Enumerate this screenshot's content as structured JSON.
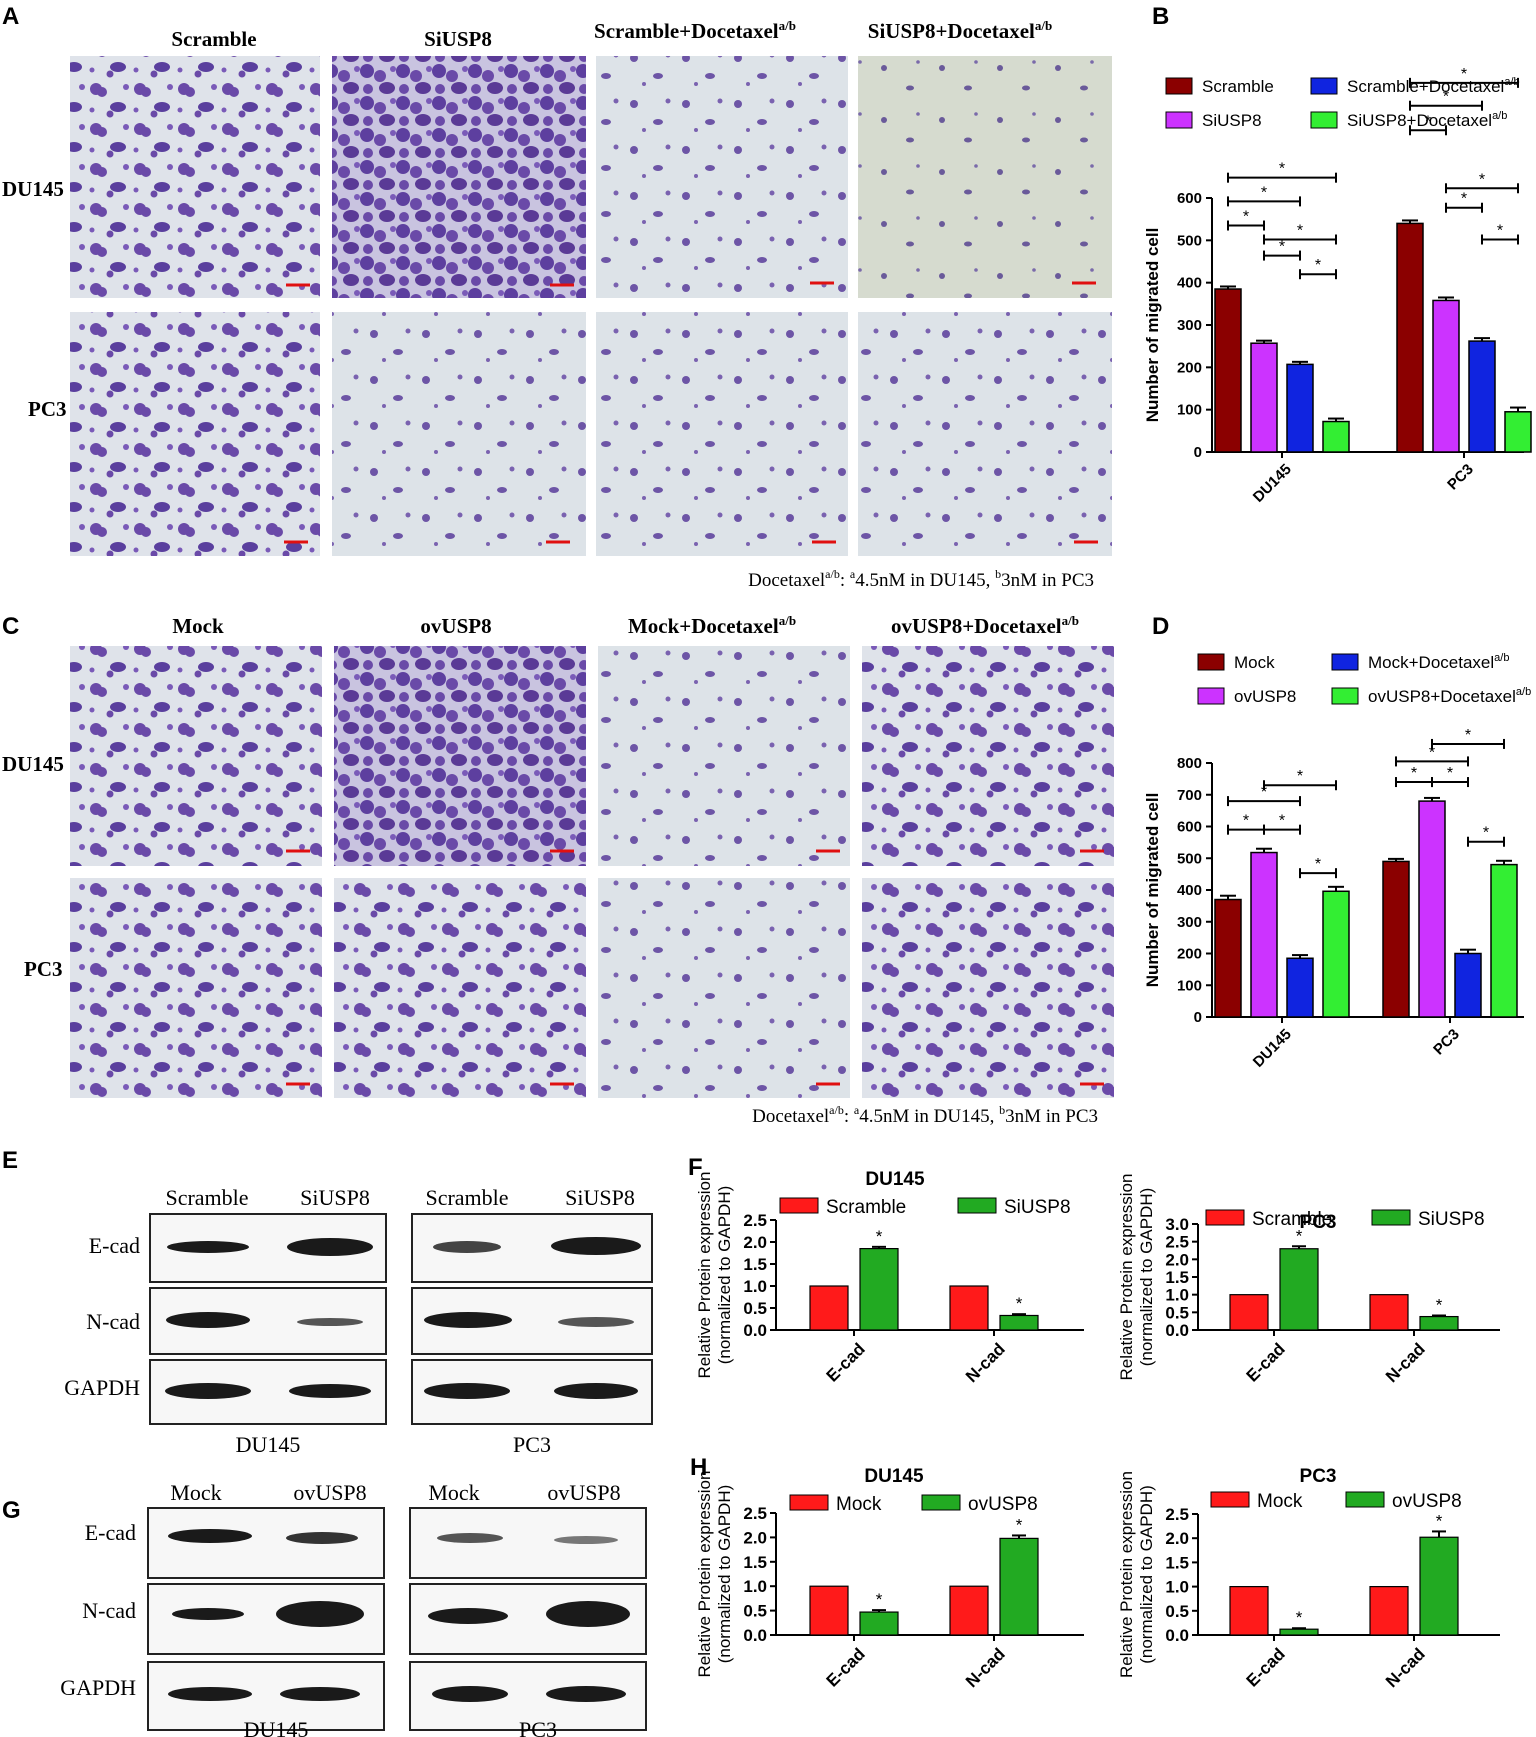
{
  "panel_labels": [
    "A",
    "B",
    "C",
    "D",
    "E",
    "F",
    "G",
    "H"
  ],
  "panelA": {
    "columns": [
      "Scramble",
      "SiUSP8",
      "Scramble+Docetaxel",
      "SiUSP8+Docetaxel"
    ],
    "superscript": "a/b",
    "rows": [
      "DU145",
      "PC3"
    ],
    "note_prefix": "Docetaxel",
    "note_sup": "a/b",
    "note_rest": ": ",
    "note_a": "a",
    "note_a_text": "4.5nM in DU145, ",
    "note_b": "b",
    "note_b_text": "3nM in PC3"
  },
  "panelC": {
    "columns": [
      "Mock",
      "ovUSP8",
      "Mock+Docetaxel",
      "ovUSP8+Docetaxel"
    ],
    "superscript": "a/b",
    "rows": [
      "DU145",
      "PC3"
    ],
    "note_prefix": "Docetaxel",
    "note_sup": "a/b",
    "note_rest": ": ",
    "note_a": "a",
    "note_a_text": "4.5nM in DU145, ",
    "note_b": "b",
    "note_b_text": "3nM in PC3"
  },
  "panelE": {
    "lanes_left": [
      "Scramble",
      "SiUSP8"
    ],
    "lanes_right": [
      "Scramble",
      "SiUSP8"
    ],
    "rows": [
      "E-cad",
      "N-cad",
      "GAPDH"
    ],
    "cells": [
      "DU145",
      "PC3"
    ]
  },
  "panelG": {
    "lanes_left": [
      "Mock",
      "ovUSP8"
    ],
    "lanes_right": [
      "Mock",
      "ovUSP8"
    ],
    "rows": [
      "E-cad",
      "N-cad",
      "GAPDH"
    ],
    "cells": [
      "DU145",
      "PC3"
    ]
  },
  "colors": {
    "scramble": "#8b0000",
    "siusp8": "#cc33ff",
    "docetaxel": "#1024e0",
    "combo": "#33ee33",
    "red": "#ff1a1a",
    "green": "#22aa22",
    "stain": "#6a4aa8",
    "field": "#dfe3ea"
  },
  "chart_data": [
    {
      "id": "B",
      "type": "bar",
      "categories": [
        "DU145",
        "PC3"
      ],
      "series": [
        {
          "name": "Scramble",
          "values": [
            385,
            540
          ],
          "errors": [
            6,
            7
          ]
        },
        {
          "name": "SiUSP8",
          "values": [
            257,
            358
          ],
          "errors": [
            6,
            7
          ]
        },
        {
          "name": "Scramble+Docetaxel",
          "values": [
            207,
            262
          ],
          "errors": [
            6,
            7
          ]
        },
        {
          "name": "SiUSP8+Docetaxel",
          "values": [
            72,
            95
          ],
          "errors": [
            7,
            10
          ]
        }
      ],
      "legend_sup": "a/b",
      "ylabel": "Number of migrated cell",
      "ylim": [
        0,
        600
      ],
      "yticks": [
        0,
        100,
        200,
        300,
        400,
        500,
        600
      ],
      "sig": "*"
    },
    {
      "id": "D",
      "type": "bar",
      "categories": [
        "DU145",
        "PC3"
      ],
      "series": [
        {
          "name": "Mock",
          "values": [
            370,
            490
          ],
          "errors": [
            12,
            8
          ]
        },
        {
          "name": "ovUSP8",
          "values": [
            518,
            680
          ],
          "errors": [
            12,
            10
          ]
        },
        {
          "name": "Mock+Docetaxel",
          "values": [
            185,
            200
          ],
          "errors": [
            10,
            12
          ]
        },
        {
          "name": "ovUSP8+Docetaxel",
          "values": [
            396,
            480
          ],
          "errors": [
            14,
            12
          ]
        }
      ],
      "legend_sup": "a/b",
      "ylabel": "Number of migrated cell",
      "ylim": [
        0,
        800
      ],
      "yticks": [
        0,
        100,
        200,
        300,
        400,
        500,
        600,
        700,
        800
      ],
      "sig": "*"
    },
    {
      "id": "F-DU145",
      "type": "bar",
      "title": "DU145",
      "categories": [
        "E-cad",
        "N-cad"
      ],
      "series": [
        {
          "name": "Scramble",
          "values": [
            1.0,
            1.0
          ],
          "errors": [
            0,
            0
          ]
        },
        {
          "name": "SiUSP8",
          "values": [
            1.85,
            0.33
          ],
          "errors": [
            0.04,
            0.03
          ]
        }
      ],
      "ylabel": "Relative Protein expression",
      "ylabel2": "(normalized to GAPDH)",
      "ylim": [
        0,
        2.5
      ],
      "yticks": [
        "0.0",
        "0.5",
        "1.0",
        "1.5",
        "2.0",
        "2.5"
      ],
      "sig": "*"
    },
    {
      "id": "F-PC3",
      "type": "bar",
      "title": "PC3",
      "categories": [
        "E-cad",
        "N-cad"
      ],
      "series": [
        {
          "name": "Scramble",
          "values": [
            1.0,
            1.0
          ],
          "errors": [
            0,
            0
          ]
        },
        {
          "name": "SiUSP8",
          "values": [
            2.3,
            0.38
          ],
          "errors": [
            0.07,
            0.03
          ]
        }
      ],
      "ylabel": "Relative Protein expression",
      "ylabel2": "(normalized to GAPDH)",
      "ylim": [
        0,
        3.0
      ],
      "yticks": [
        "0.0",
        "0.5",
        "1.0",
        "1.5",
        "2.0",
        "2.5",
        "3.0"
      ],
      "sig": "*"
    },
    {
      "id": "H-DU145",
      "type": "bar",
      "title": "DU145",
      "categories": [
        "E-cad",
        "N-cad"
      ],
      "series": [
        {
          "name": "Mock",
          "values": [
            1.0,
            1.0
          ],
          "errors": [
            0,
            0
          ]
        },
        {
          "name": "ovUSP8",
          "values": [
            0.47,
            1.98
          ],
          "errors": [
            0.04,
            0.06
          ]
        }
      ],
      "ylabel": "Relative Protein expression",
      "ylabel2": "(normalized to GAPDH)",
      "ylim": [
        0,
        2.5
      ],
      "yticks": [
        "0.0",
        "0.5",
        "1.0",
        "1.5",
        "2.0",
        "2.5"
      ],
      "sig": "*"
    },
    {
      "id": "H-PC3",
      "type": "bar",
      "title": "PC3",
      "categories": [
        "E-cad",
        "N-cad"
      ],
      "series": [
        {
          "name": "Mock",
          "values": [
            1.0,
            1.0
          ],
          "errors": [
            0,
            0
          ]
        },
        {
          "name": "ovUSP8",
          "values": [
            0.12,
            2.02
          ],
          "errors": [
            0.02,
            0.12
          ]
        }
      ],
      "ylabel": "Relative Protein expression",
      "ylabel2": "(normalized to GAPDH)",
      "ylim": [
        0,
        2.5
      ],
      "yticks": [
        "0.0",
        "0.5",
        "1.0",
        "1.5",
        "2.0",
        "2.5"
      ],
      "sig": "*"
    }
  ]
}
